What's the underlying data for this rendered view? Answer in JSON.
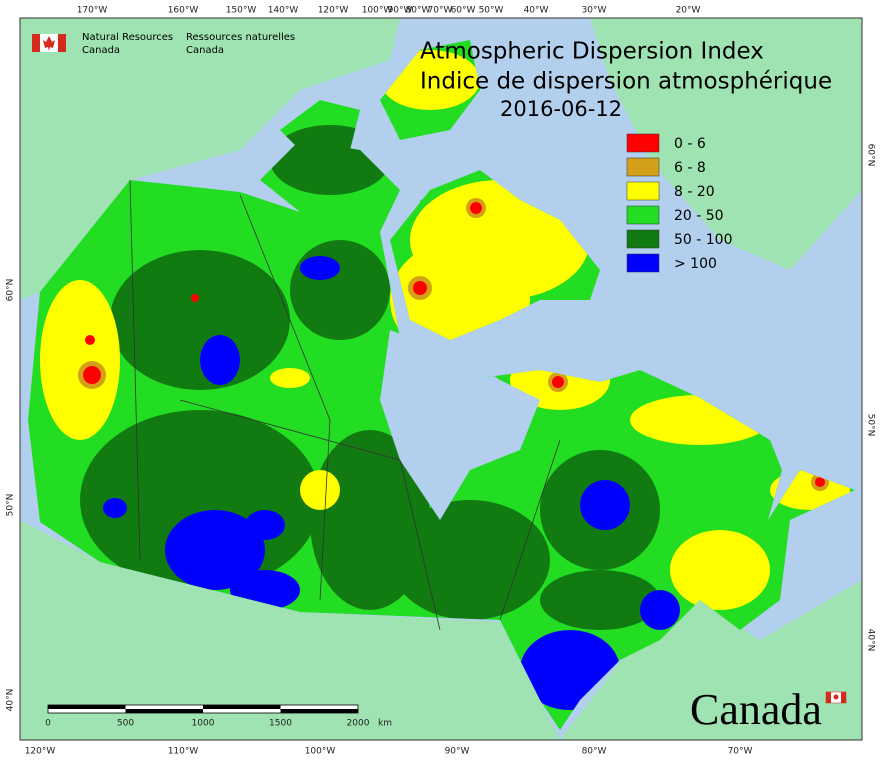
{
  "header": {
    "agency_en": [
      "Natural Resources",
      "Canada"
    ],
    "agency_fr": [
      "Ressources naturelles",
      "Canada"
    ]
  },
  "title": {
    "line1": "Atmospheric Dispersion Index",
    "line2": "Indice de dispersion atmosphérique",
    "date": "2016-06-12"
  },
  "legend": [
    {
      "label": "0 - 6",
      "color": "#ff0000"
    },
    {
      "label": "6 - 8",
      "color": "#d4a017"
    },
    {
      "label": "8 - 20",
      "color": "#ffff00"
    },
    {
      "label": "20 - 50",
      "color": "#22dd22"
    },
    {
      "label": "50 - 100",
      "color": "#117a11"
    },
    {
      "label": "> 100",
      "color": "#0000ff"
    }
  ],
  "graticule": {
    "top": [
      "170°W",
      "160°W",
      "150°W",
      "140°W",
      "120°W",
      "100°W",
      "90°W",
      "80°W",
      "70°W",
      "60°W",
      "50°W",
      "40°W",
      "30°W",
      "20°W"
    ],
    "bottom": [
      "120°W",
      "110°W",
      "100°W",
      "90°W",
      "80°W",
      "70°W"
    ],
    "left": [
      "60°N",
      "50°N",
      "40°N"
    ],
    "right": [
      "60°N",
      "50°N",
      "40°N"
    ]
  },
  "scale_bar": {
    "labels": [
      "0",
      "500",
      "1000",
      "1500",
      "2000"
    ],
    "unit": "km"
  },
  "wordmark": "Canada"
}
